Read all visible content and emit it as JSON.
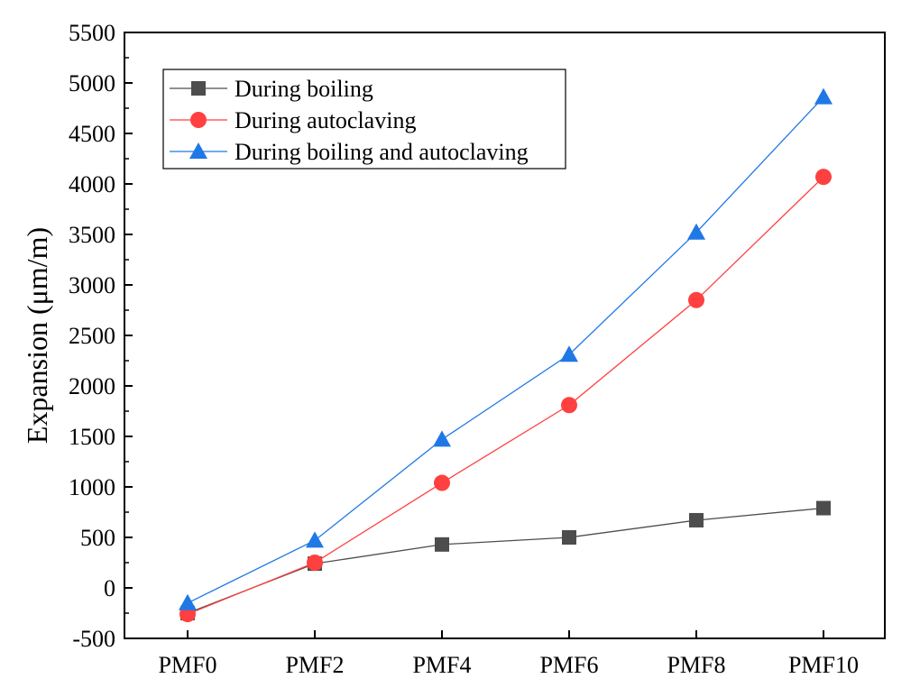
{
  "chart_data": {
    "type": "line",
    "categories": [
      "PMF0",
      "PMF2",
      "PMF4",
      "PMF6",
      "PMF8",
      "PMF10"
    ],
    "ylabel": "Expansion (μm/m)",
    "xlabel": "",
    "ylim": [
      -500,
      5500
    ],
    "yticks": [
      -500,
      0,
      500,
      1000,
      1500,
      2000,
      2500,
      3000,
      3500,
      4000,
      4500,
      5000,
      5500
    ],
    "grid": false,
    "legend_position": "top-left",
    "series": [
      {
        "name": "During boiling",
        "marker": "square",
        "color": "#4d4d4d",
        "values": [
          -250,
          240,
          430,
          500,
          670,
          790
        ]
      },
      {
        "name": "During autoclaving",
        "marker": "circle",
        "color": "#ff4040",
        "values": [
          -260,
          250,
          1040,
          1810,
          2850,
          4070
        ]
      },
      {
        "name": "During boiling and autoclaving",
        "marker": "triangle",
        "color": "#1f78e6",
        "values": [
          -150,
          470,
          1470,
          2310,
          3520,
          4860
        ]
      }
    ]
  }
}
